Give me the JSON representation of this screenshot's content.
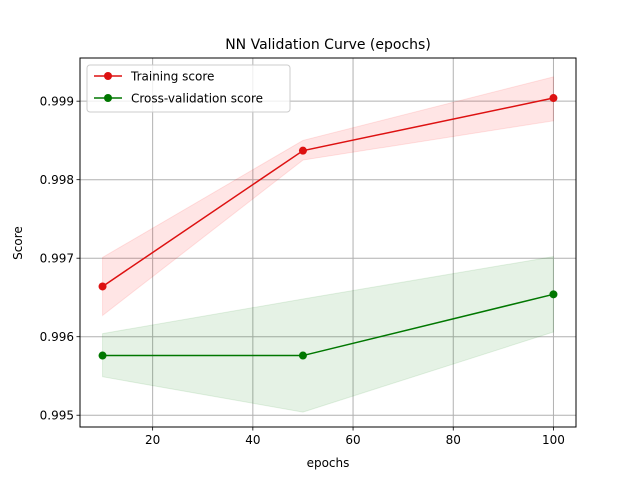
{
  "chart_data": {
    "type": "line",
    "title": "NN Validation Curve (epochs)",
    "xlabel": "epochs",
    "ylabel": "Score",
    "xlim": [
      5.5,
      104.5
    ],
    "ylim": [
      0.99485,
      0.99955
    ],
    "xticks": [
      20,
      40,
      60,
      80,
      100
    ],
    "xtick_labels": [
      "20",
      "40",
      "60",
      "80",
      "100"
    ],
    "yticks": [
      0.995,
      0.996,
      0.997,
      0.998,
      0.999
    ],
    "ytick_labels": [
      "0.995",
      "0.996",
      "0.997",
      "0.998",
      "0.999"
    ],
    "grid": true,
    "legend_position": "top-left",
    "x": [
      10,
      50,
      100
    ],
    "series": [
      {
        "name": "Training score",
        "color": "#e41a1c",
        "line_color": "#dd1111",
        "fill_color": "#ff0000",
        "values": [
          0.99664,
          0.99837,
          0.99904
        ],
        "band_lower": [
          0.99627,
          0.99825,
          0.99875
        ],
        "band_upper": [
          0.99701,
          0.9985,
          0.99931
        ]
      },
      {
        "name": "Cross-validation score",
        "color": "#008000",
        "line_color": "#007700",
        "fill_color": "#008000",
        "values": [
          0.99576,
          0.99576,
          0.99654
        ],
        "band_lower": [
          0.99549,
          0.99504,
          0.99606
        ],
        "band_upper": [
          0.99604,
          0.99648,
          0.99702
        ]
      }
    ]
  }
}
